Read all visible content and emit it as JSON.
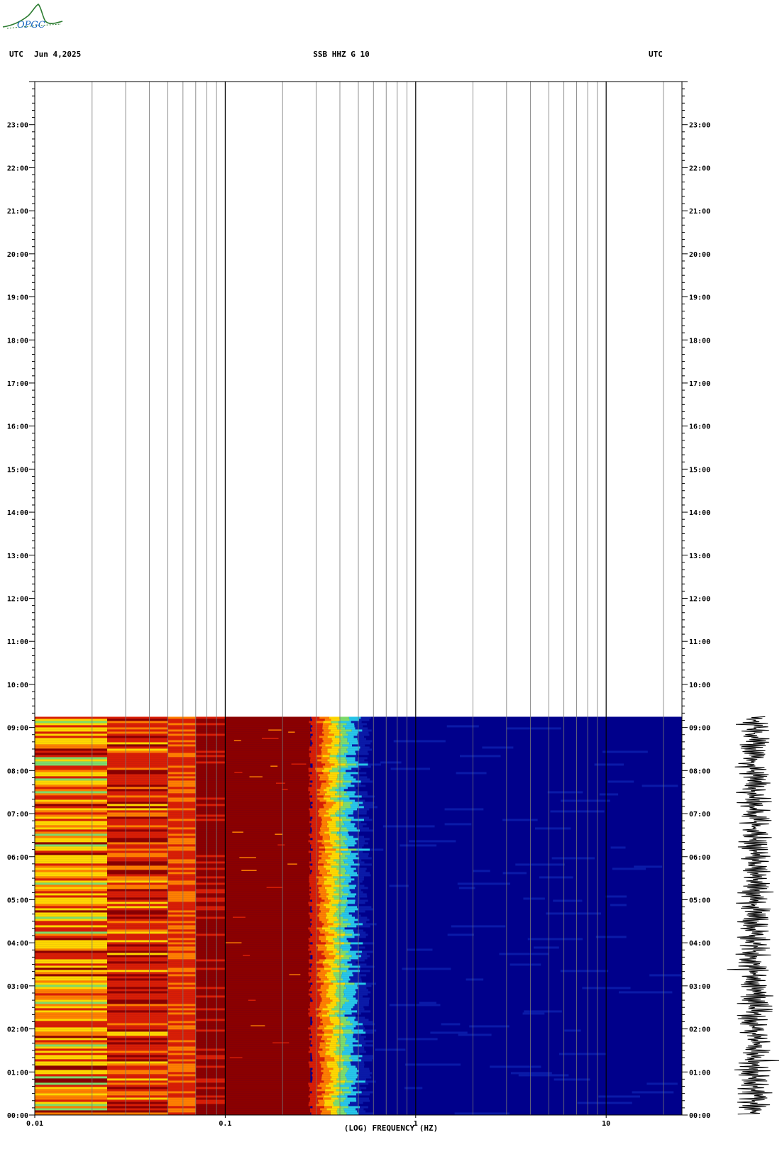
{
  "header": {
    "left_utc": "UTC",
    "date": "Jun 4,2025",
    "station": "SSB HHZ G 10",
    "right_utc": "UTC"
  },
  "logo": {
    "text": "OPGC",
    "color": "#2e7d32",
    "accent": "#1565c0"
  },
  "colors": {
    "saturated": "#8b0000",
    "red": "#d81e05",
    "orange": "#ff7f00",
    "yellow": "#ffd700",
    "green": "#7fdc6a",
    "cyan": "#27c6e8",
    "blue": "#0a1aa8",
    "deep_blue": "#00008b"
  },
  "chart_data": {
    "type": "heatmap",
    "title": "SSB HHZ G 10",
    "xlabel": "(LOG) FREQUENCY (HZ)",
    "ylabel": "",
    "x_scale": "log",
    "xlim": [
      0.01,
      25
    ],
    "x_ticks": [
      "0.01",
      "0.1",
      "1",
      "10"
    ],
    "x_tick_values": [
      0.01,
      0.1,
      1,
      10
    ],
    "y_ticks": [
      "00:00",
      "01:00",
      "02:00",
      "03:00",
      "04:00",
      "05:00",
      "06:00",
      "07:00",
      "08:00",
      "09:00",
      "10:00",
      "11:00",
      "12:00",
      "13:00",
      "14:00",
      "15:00",
      "16:00",
      "17:00",
      "18:00",
      "19:00",
      "20:00",
      "21:00",
      "22:00",
      "23:00"
    ],
    "y_tick_values": [
      0,
      1,
      2,
      3,
      4,
      5,
      6,
      7,
      8,
      9,
      10,
      11,
      12,
      13,
      14,
      15,
      16,
      17,
      18,
      19,
      20,
      21,
      22,
      23
    ],
    "ylim": [
      0,
      24
    ],
    "data_end_hour": 9.25,
    "spectral_bands": [
      {
        "f_min": 0.01,
        "f_max": 0.024,
        "level": "yellow"
      },
      {
        "f_min": 0.024,
        "f_max": 0.05,
        "level": "red"
      },
      {
        "f_min": 0.05,
        "f_max": 0.07,
        "level": "red"
      },
      {
        "f_min": 0.07,
        "f_max": 0.1,
        "level": "saturated"
      },
      {
        "f_min": 0.1,
        "f_max": 0.28,
        "level": "saturated"
      },
      {
        "f_min": 0.28,
        "f_max": 0.55,
        "level": "transition"
      },
      {
        "f_min": 0.55,
        "f_max": 25,
        "level": "blue"
      }
    ],
    "grid": true,
    "seismogram": "right-side trace, 00:00-09:15"
  }
}
